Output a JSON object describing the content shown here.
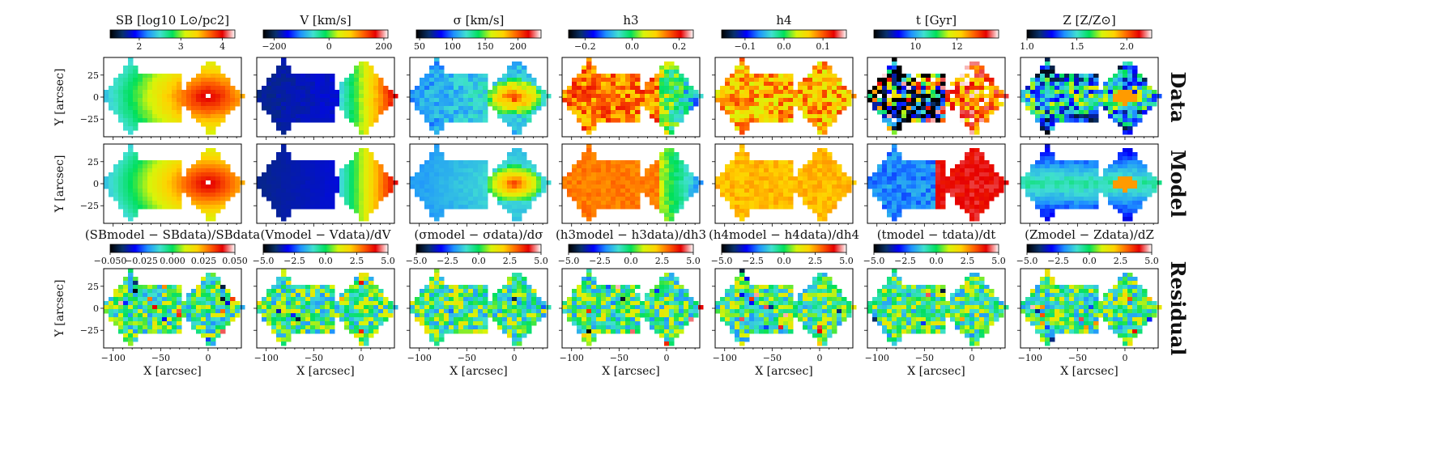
{
  "figure": {
    "row_labels": [
      "Data",
      "Model",
      "Residual"
    ],
    "y_axis_label": "Y [arcsec]",
    "x_axis_label": "X [arcsec]",
    "x_ticks": [
      "−100",
      "−50",
      "0"
    ],
    "y_ticks": [
      "25",
      "0",
      "−25"
    ],
    "colormap_colors": [
      "#000000",
      "#08306b",
      "#0000ff",
      "#1e90ff",
      "#40e0d0",
      "#00e05a",
      "#d7f50a",
      "#ffd200",
      "#ff6400",
      "#e60000",
      "#ffffff"
    ]
  },
  "chart_data": [
    {
      "type": "heatmap",
      "quantity": "SB",
      "row": "Data",
      "title": "SB [log10 L⊙/pc2]",
      "colorbar_ticks": [
        "2",
        "3",
        "4"
      ],
      "colorbar_range": [
        1.3,
        4.3
      ],
      "xlim": [
        -110,
        35
      ],
      "ylim": [
        -45,
        45
      ]
    },
    {
      "type": "heatmap",
      "quantity": "V",
      "row": "Data",
      "title": "V [km/s]",
      "colorbar_ticks": [
        "−200",
        "0",
        "200"
      ],
      "colorbar_range": [
        -240,
        215
      ]
    },
    {
      "type": "heatmap",
      "quantity": "sigma",
      "row": "Data",
      "title": "σ [km/s]",
      "colorbar_ticks": [
        "50",
        "100",
        "150",
        "200"
      ],
      "colorbar_range": [
        45,
        235
      ]
    },
    {
      "type": "heatmap",
      "quantity": "h3",
      "row": "Data",
      "title": "h3",
      "colorbar_ticks": [
        "−0.2",
        "0.0",
        "0.2"
      ],
      "colorbar_range": [
        -0.27,
        0.26
      ]
    },
    {
      "type": "heatmap",
      "quantity": "h4",
      "row": "Data",
      "title": "h4",
      "colorbar_ticks": [
        "−0.1",
        "0.0",
        "0.1"
      ],
      "colorbar_range": [
        -0.16,
        0.16
      ]
    },
    {
      "type": "heatmap",
      "quantity": "t",
      "row": "Data",
      "title": "t [Gyr]",
      "colorbar_ticks": [
        "10",
        "12"
      ],
      "colorbar_range": [
        8.0,
        14.0
      ]
    },
    {
      "type": "heatmap",
      "quantity": "Z",
      "row": "Data",
      "title": "Z [Z/Z⊙]",
      "colorbar_ticks": [
        "1.0",
        "1.5",
        "2.0"
      ],
      "colorbar_range": [
        1.0,
        2.25
      ]
    },
    {
      "type": "heatmap",
      "row": "Residual",
      "title": "(SBmodel − SBdata)/SBdata",
      "colorbar_ticks": [
        "−0.050",
        "−0.025",
        "0.000",
        "0.025",
        "0.050"
      ],
      "colorbar_range": [
        -0.05,
        0.05
      ]
    },
    {
      "type": "heatmap",
      "row": "Residual",
      "title": "(Vmodel − Vdata)/dV",
      "colorbar_ticks": [
        "−5.0",
        "−2.5",
        "0.0",
        "2.5",
        "5.0"
      ],
      "colorbar_range": [
        -5,
        5
      ]
    },
    {
      "type": "heatmap",
      "row": "Residual",
      "title": "(σmodel − σdata)/dσ",
      "colorbar_ticks": [
        "−5.0",
        "−2.5",
        "0.0",
        "2.5",
        "5.0"
      ],
      "colorbar_range": [
        -5,
        5
      ]
    },
    {
      "type": "heatmap",
      "row": "Residual",
      "title": "(h3model − h3data)/dh3",
      "colorbar_ticks": [
        "−5.0",
        "−2.5",
        "0.0",
        "2.5",
        "5.0"
      ],
      "colorbar_range": [
        -5,
        5
      ]
    },
    {
      "type": "heatmap",
      "row": "Residual",
      "title": "(h4model − h4data)/dh4",
      "colorbar_ticks": [
        "−5.0",
        "−2.5",
        "0.0",
        "2.5",
        "5.0"
      ],
      "colorbar_range": [
        -5,
        5
      ]
    },
    {
      "type": "heatmap",
      "row": "Residual",
      "title": "(tmodel − tdata)/dt",
      "colorbar_ticks": [
        "−5.0",
        "−2.5",
        "0.0",
        "2.5",
        "5.0"
      ],
      "colorbar_range": [
        -5,
        5
      ]
    },
    {
      "type": "heatmap",
      "row": "Residual",
      "title": "(Zmodel − Zdata)/dZ",
      "colorbar_ticks": [
        "−5.0",
        "−2.5",
        "0.0",
        "2.5",
        "5.0"
      ],
      "colorbar_range": [
        -5,
        5
      ]
    }
  ]
}
